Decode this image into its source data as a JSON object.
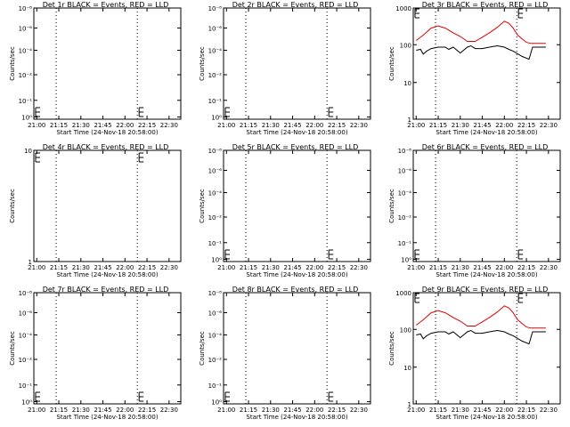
{
  "x_tick_labels": [
    "21:00",
    "21:15",
    "21:30",
    "21:45",
    "22:00",
    "22:15",
    "22:30"
  ],
  "x_axis_label": "Start Time (24-Nov-18 20:58:00)",
  "y_axis_label": "Counts/sec",
  "chart_data": [
    {
      "type": "line",
      "title": "Det 1r BLACK = Events, RED = LLD",
      "ylabels": [
        "10⁻⁸",
        "10⁻⁶",
        "10⁻⁴",
        "10⁻²",
        "10⁻¹",
        "10⁰"
      ],
      "series": []
    },
    {
      "type": "line",
      "title": "Det 2r BLACK = Events, RED = LLD",
      "ylabels": [
        "10⁻⁸",
        "10⁻⁶",
        "10⁻⁴",
        "10⁻²",
        "10⁻¹",
        "10⁰"
      ],
      "series": []
    },
    {
      "type": "line",
      "title": "Det 3r BLACK = Events, RED = LLD",
      "ylabels": [
        "1000",
        "100",
        "10",
        "1"
      ],
      "series": [
        {
          "color": "#dd0000",
          "x": [
            21.0,
            21.08,
            21.17,
            21.25,
            21.33,
            21.42,
            21.5,
            21.58,
            21.67,
            21.75,
            21.83,
            21.92,
            22.0,
            22.05,
            22.1,
            22.15,
            22.2,
            22.25,
            22.3,
            22.38,
            22.47
          ],
          "y": [
            170,
            240,
            380,
            440,
            380,
            280,
            220,
            160,
            160,
            210,
            280,
            400,
            600,
            520,
            380,
            240,
            190,
            150,
            140,
            140,
            140
          ]
        },
        {
          "color": "#000000",
          "x": [
            21.0,
            21.05,
            21.08,
            21.12,
            21.17,
            21.25,
            21.33,
            21.37,
            21.42,
            21.5,
            21.58,
            21.62,
            21.67,
            21.75,
            21.83,
            21.92,
            22.0,
            22.05,
            22.1,
            22.2,
            22.28,
            22.32,
            22.35,
            22.4,
            22.47
          ],
          "y": [
            90,
            95,
            70,
            85,
            100,
            110,
            110,
            95,
            110,
            75,
            110,
            120,
            100,
            100,
            110,
            120,
            110,
            95,
            85,
            60,
            50,
            110,
            110,
            110,
            110
          ]
        }
      ]
    },
    {
      "type": "line",
      "title": "Det 4r BLACK = Events, RED = LLD",
      "ylabels": [
        "10",
        "1"
      ],
      "series": []
    },
    {
      "type": "line",
      "title": "Det 5r BLACK = Events, RED = LLD",
      "ylabels": [
        "10⁻⁸",
        "10⁻⁶",
        "10⁻⁴",
        "10⁻²",
        "10⁻¹",
        "10⁰"
      ],
      "series": []
    },
    {
      "type": "line",
      "title": "Det 6r BLACK = Events, RED = LLD",
      "ylabels": [
        "10⁻⁸",
        "10⁻⁶",
        "10⁻⁴",
        "10⁻²",
        "10⁻¹",
        "10⁰"
      ],
      "series": []
    },
    {
      "type": "line",
      "title": "Det 7r BLACK = Events, RED = LLD",
      "ylabels": [
        "10⁻⁸",
        "10⁻⁶",
        "10⁻⁴",
        "10⁻²",
        "10⁻¹",
        "10⁰"
      ],
      "series": []
    },
    {
      "type": "line",
      "title": "Det 8r BLACK = Events, RED = LLD",
      "ylabels": [
        "10⁻⁸",
        "10⁻⁶",
        "10⁻⁴",
        "10⁻²",
        "10⁻¹",
        "10⁰"
      ],
      "series": []
    },
    {
      "type": "line",
      "title": "Det 9r BLACK = Events, RED = LLD",
      "ylabels": [
        "1000",
        "100",
        "10",
        "1"
      ],
      "series": [
        {
          "color": "#dd0000",
          "x": [
            21.0,
            21.08,
            21.17,
            21.25,
            21.33,
            21.42,
            21.5,
            21.58,
            21.67,
            21.75,
            21.83,
            21.92,
            22.0,
            22.05,
            22.1,
            22.15,
            22.2,
            22.25,
            22.3,
            22.38,
            22.47
          ],
          "y": [
            170,
            240,
            380,
            440,
            380,
            280,
            220,
            160,
            160,
            210,
            280,
            400,
            600,
            520,
            380,
            240,
            190,
            150,
            140,
            140,
            140
          ]
        },
        {
          "color": "#000000",
          "x": [
            21.0,
            21.05,
            21.08,
            21.12,
            21.17,
            21.25,
            21.33,
            21.37,
            21.42,
            21.5,
            21.58,
            21.62,
            21.67,
            21.75,
            21.83,
            21.92,
            22.0,
            22.05,
            22.1,
            22.2,
            22.28,
            22.32,
            22.35,
            22.4,
            22.47
          ],
          "y": [
            90,
            95,
            70,
            85,
            100,
            110,
            110,
            95,
            110,
            75,
            110,
            120,
            100,
            100,
            110,
            120,
            110,
            95,
            85,
            60,
            50,
            110,
            110,
            110,
            110
          ]
        }
      ]
    }
  ]
}
